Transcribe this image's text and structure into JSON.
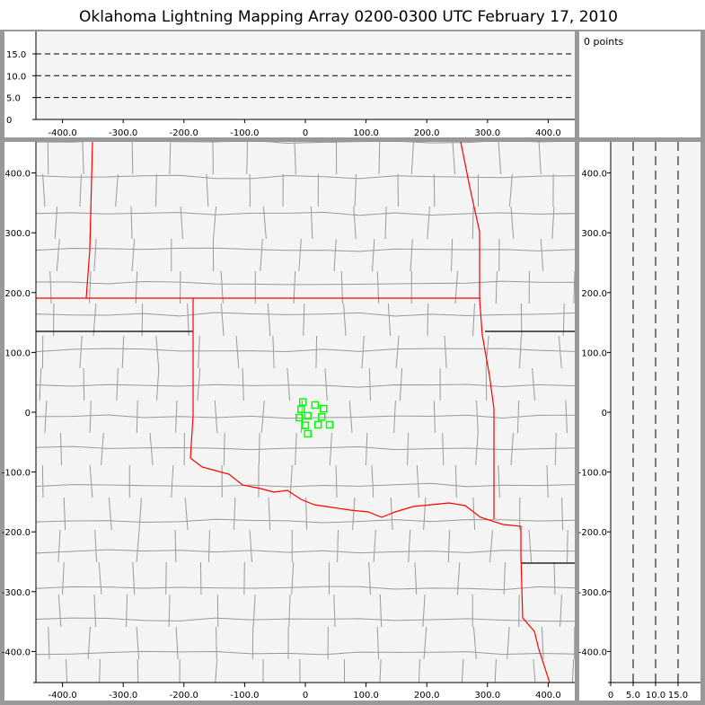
{
  "title": "Oklahoma Lightning Mapping Array   0200-0300 UTC  February 17, 2010",
  "points_label": "0 points",
  "colors": {
    "state_border": "#ff0000",
    "county_border": "#999999",
    "source_marker": "#00ff00",
    "plot_bg": "#f4f4f4",
    "frame": "#999999"
  },
  "chart_data": [
    {
      "panel": "altitude-vs-east-west",
      "type": "scatter",
      "xlim": [
        -450,
        450
      ],
      "ylim": [
        0,
        20
      ],
      "x_ticks": [
        "-400.0",
        "-300.0",
        "-200.0",
        "-100.0",
        "0",
        "100.0",
        "200.0",
        "300.0",
        "400.0"
      ],
      "y_ticks": [
        "0",
        "5.0",
        "10.0",
        "15.0"
      ],
      "grid_y": [
        5,
        10,
        15
      ],
      "points": []
    },
    {
      "panel": "plan-view",
      "type": "scatter",
      "xlim": [
        -445,
        445
      ],
      "ylim": [
        -450,
        450
      ],
      "x_ticks": [
        "-400.0",
        "-300.0",
        "-200.0",
        "-100.0",
        "0",
        "100.0",
        "200.0",
        "300.0",
        "400.0"
      ],
      "y_ticks": [
        "-400.0",
        "-300.0",
        "-200.0",
        "-100.0",
        "0",
        "100.0",
        "200.0",
        "300.0",
        "400.0"
      ],
      "marker": "square",
      "points": [
        [
          -4,
          17
        ],
        [
          16,
          12
        ],
        [
          -7,
          5
        ],
        [
          30,
          6
        ],
        [
          4,
          -6
        ],
        [
          -10,
          -9
        ],
        [
          27,
          -8
        ],
        [
          0,
          -22
        ],
        [
          21,
          -21
        ],
        [
          40,
          -21
        ],
        [
          4,
          -36
        ]
      ]
    },
    {
      "panel": "north-south-vs-altitude",
      "type": "scatter",
      "xlim": [
        0,
        20
      ],
      "ylim": [
        -450,
        450
      ],
      "x_ticks": [
        "0",
        "5.0",
        "10.0",
        "15.0"
      ],
      "grid_x": [
        5,
        10,
        15
      ],
      "points": []
    }
  ]
}
